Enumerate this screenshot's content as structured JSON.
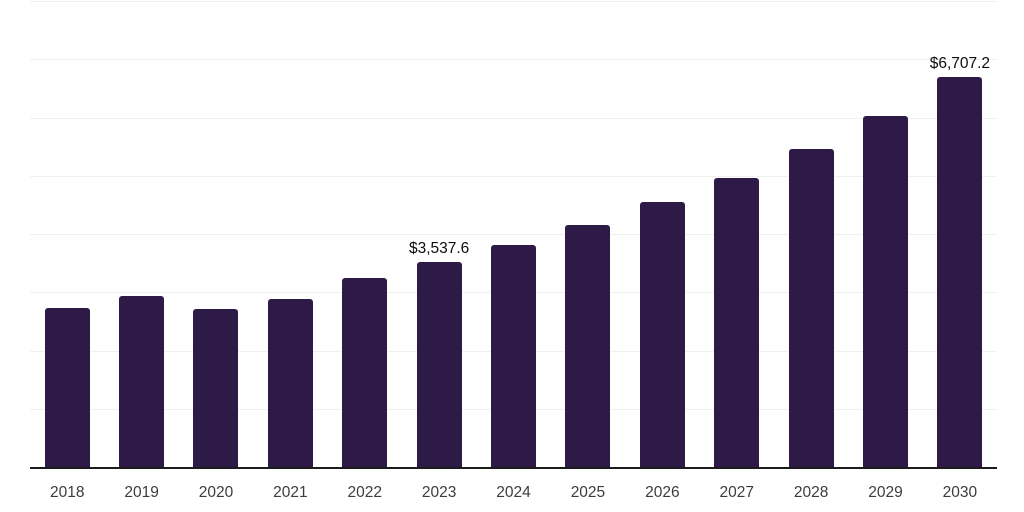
{
  "chart_data": {
    "type": "bar",
    "title": "",
    "xlabel": "",
    "ylabel": "",
    "categories": [
      "2018",
      "2019",
      "2020",
      "2021",
      "2022",
      "2023",
      "2024",
      "2025",
      "2026",
      "2027",
      "2028",
      "2029",
      "2030"
    ],
    "values": [
      2745,
      2955,
      2735,
      2905,
      3265,
      3537.6,
      3830,
      4170,
      4560,
      4980,
      5480,
      6045,
      6707.2
    ],
    "labeled_points": [
      {
        "category": "2023",
        "label": "$3,537.6"
      },
      {
        "category": "2030",
        "label": "$6,707.2"
      }
    ],
    "ylim": [
      0,
      8000
    ],
    "gridline_interval": 1000,
    "grid": "horizontal-only",
    "y_tick_labels_shown": false,
    "legend": "none",
    "colors": {
      "bar": "#2e1a47",
      "gridline": "#f0f0f0",
      "axis_line": "#1c1c1c",
      "value_label": "#0d0d0d",
      "tick_label": "#3c3c3c",
      "background": "#ffffff"
    }
  }
}
